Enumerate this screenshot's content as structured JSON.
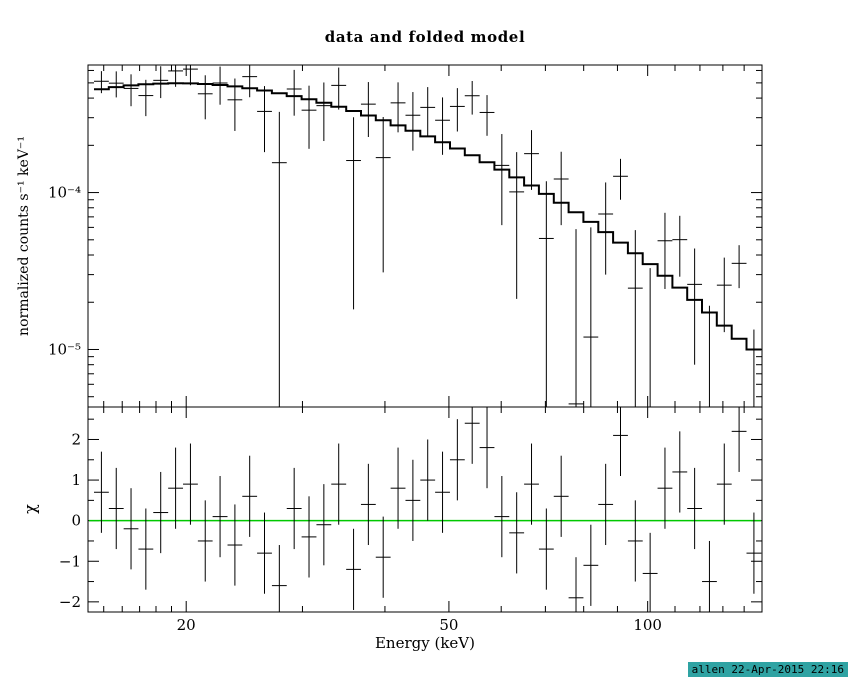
{
  "footer": "allen 22-Apr-2015 22:16",
  "colors": {
    "foreground": "#000000",
    "background": "#ffffff",
    "model_line": "#000000",
    "data_points": "#000000",
    "zero_line": "#00c800",
    "footer_bg": "#2fa3a3"
  },
  "chart_data": {
    "type": "line",
    "title": "data and folded model",
    "xlabel": "Energy (keV)",
    "ylabel_top": "normalized counts s⁻¹ keV⁻¹",
    "ylabel_bottom": "χ",
    "x_scale": "log",
    "x_range": [
      14.2,
      149
    ],
    "x_major_ticks": [
      20,
      50,
      100
    ],
    "x_major_labels": [
      "20",
      "50",
      "100"
    ],
    "x_minor_ticks": [
      15,
      16,
      17,
      18,
      19,
      30,
      40,
      60,
      70,
      80,
      90,
      110,
      120,
      130,
      140
    ],
    "top_panel": {
      "y_scale": "log",
      "y_range": [
        4.3e-06,
        0.00065
      ],
      "y_major_ticks": [
        0.0001,
        1e-05
      ],
      "y_major_labels": [
        "10⁻⁴",
        "10⁻⁵"
      ],
      "y_minor_ticks": [
        5e-06,
        6e-06,
        7e-06,
        8e-06,
        9e-06,
        2e-05,
        3e-05,
        4e-05,
        5e-05,
        6e-05,
        7e-05,
        8e-05,
        9e-05,
        0.0002,
        0.0003,
        0.0004,
        0.0005,
        0.0006
      ]
    },
    "bottom_panel": {
      "y_scale": "linear",
      "y_range": [
        -2.25,
        2.8
      ],
      "y_major_ticks": [
        -2,
        -1,
        0,
        1,
        2
      ],
      "y_major_labels": [
        "−2",
        "−1",
        "0",
        "1",
        "2"
      ],
      "y_minor_ticks": [
        -1.5,
        -0.5,
        0.5,
        1.5,
        2.5
      ],
      "zero_line": 0
    },
    "bins": {
      "edges": [
        14.5,
        15.27,
        16.08,
        16.93,
        17.83,
        18.78,
        19.78,
        20.83,
        21.93,
        23.1,
        24.32,
        25.61,
        26.97,
        28.4,
        29.91,
        31.5,
        33.17,
        34.94,
        36.79,
        38.74,
        40.8,
        42.97,
        45.25,
        47.65,
        50.18,
        52.84,
        55.65,
        58.6,
        61.71,
        64.99,
        68.44,
        72.07,
        75.9,
        79.93,
        84.17,
        88.64,
        93.34,
        98.29,
        103.51,
        109.0,
        114.79,
        120.88,
        127.29,
        134.05,
        141.16,
        148.65
      ],
      "model": [
        0.000455,
        0.00047,
        0.000482,
        0.00049,
        0.000495,
        0.000497,
        0.000496,
        0.000492,
        0.000485,
        0.000475,
        0.000462,
        0.000447,
        0.00043,
        0.000412,
        0.000393,
        0.000373,
        0.000352,
        0.000331,
        0.00031,
        0.000289,
        0.000268,
        0.000248,
        0.000228,
        0.000209,
        0.000191,
        0.000173,
        0.000156,
        0.00014,
        0.000125,
        0.000111,
        9.8e-05,
        8.6e-05,
        7.5e-05,
        6.5e-05,
        5.6e-05,
        4.8e-05,
        4.1e-05,
        3.5e-05,
        2.95e-05,
        2.48e-05,
        2.07e-05,
        1.72e-05,
        1.42e-05,
        1.17e-05,
        1e-05
      ],
      "rate": [
        0.000512,
        0.000498,
        0.000461,
        0.000415,
        0.000519,
        0.000596,
        0.000612,
        0.000426,
        0.000499,
        0.00039,
        0.000548,
        0.000329,
        0.000155,
        0.000457,
        0.000335,
        0.000358,
        0.000482,
        0.00016,
        0.000366,
        0.000167,
        0.000373,
        0.000311,
        0.000349,
        0.000289,
        0.000354,
        0.000414,
        0.000324,
        0.000149,
        0.000101,
        0.000177,
        5.1e-05,
        0.000122,
        4.5e-06,
        1.2e-05,
        7.3e-05,
        0.000127,
        2.46e-05,
        4e-06,
        4.93e-05,
        5.01e-05,
        2.6e-05,
        4e-06,
        2.57e-05,
        3.54e-05,
        4e-06
      ],
      "rate_err": [
        8.2e-05,
        9.4e-05,
        0.000106,
        0.000108,
        0.000119,
        0.000124,
        0.000129,
        0.000133,
        0.000136,
        0.000143,
        0.000143,
        0.000148,
        0.000172,
        0.000148,
        0.000145,
        0.000145,
        0.000144,
        0.000142,
        0.00014,
        0.000136,
        0.000131,
        0.000126,
        0.000121,
        0.000115,
        0.000109,
        0.0001,
        9.4e-05,
        8.7e-05,
        8e-05,
        7.3e-05,
        6.7e-05,
        6e-05,
        5.4e-05,
        4.8e-05,
        4.3e-05,
        3.7e-05,
        3.3e-05,
        2.9e-05,
        2.5e-05,
        2.1e-05,
        1.8e-05,
        1.5e-05,
        1.28e-05,
        1.08e-05,
        9.4e-06
      ],
      "chi": [
        0.7,
        0.3,
        -0.2,
        -0.7,
        0.2,
        0.8,
        0.9,
        -0.5,
        0.1,
        -0.6,
        0.6,
        -0.8,
        -1.6,
        0.3,
        -0.4,
        -0.1,
        0.9,
        -1.2,
        0.4,
        -0.9,
        0.8,
        0.5,
        1.0,
        0.7,
        1.5,
        2.4,
        1.8,
        0.1,
        -0.3,
        0.9,
        -0.7,
        0.6,
        -1.9,
        -1.1,
        0.4,
        2.1,
        -0.5,
        -1.3,
        0.8,
        1.2,
        0.3,
        -1.5,
        0.9,
        2.2,
        -0.8
      ],
      "chi_err": 1
    }
  }
}
